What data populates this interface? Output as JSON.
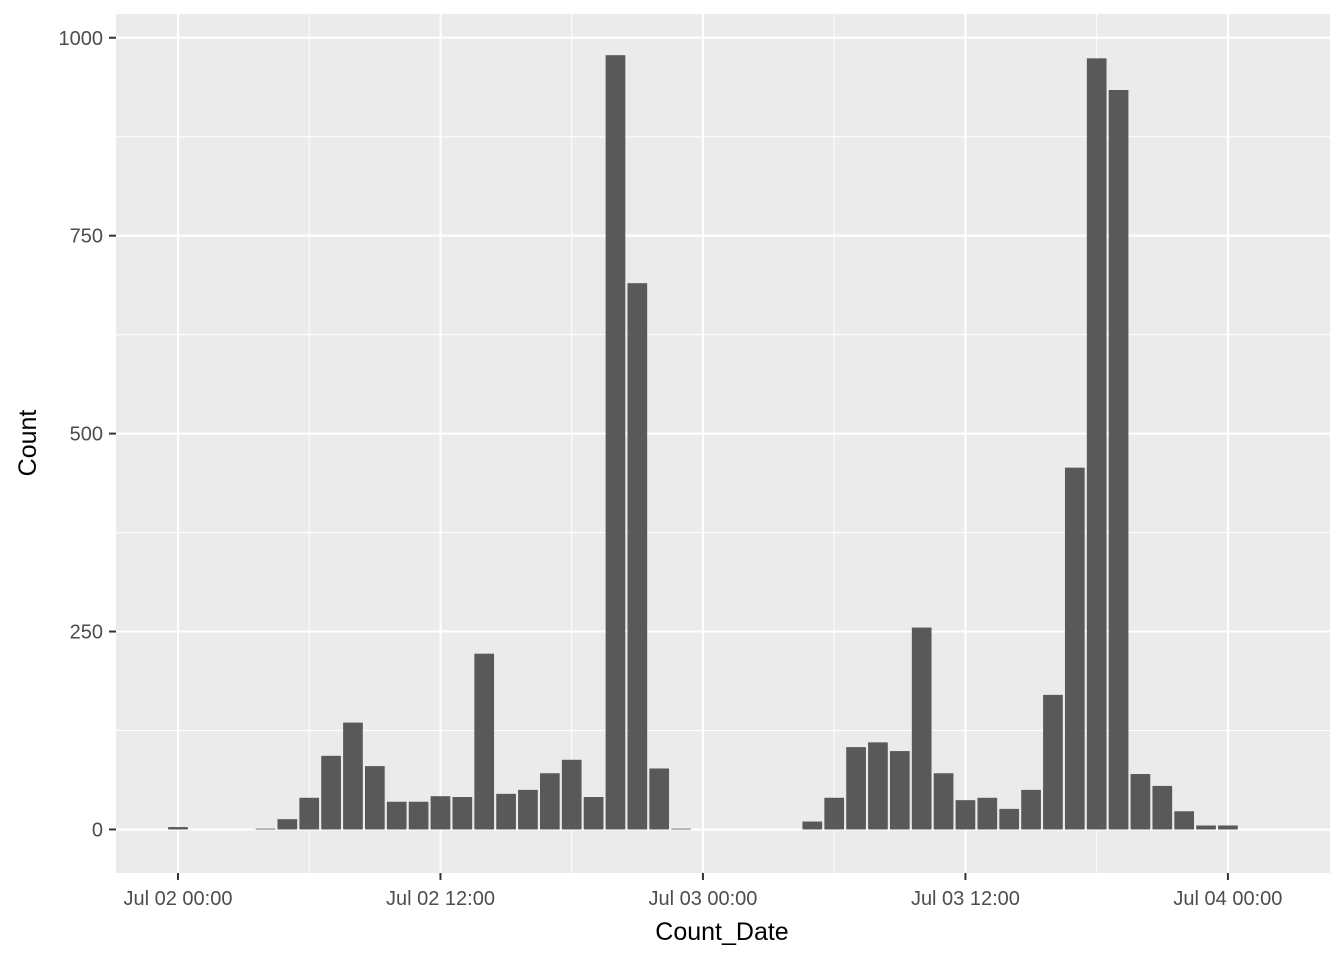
{
  "chart_data": {
    "type": "bar",
    "xlabel": "Count_Date",
    "ylabel": "Count",
    "x_range": [
      "2024-07-01T21:10",
      "2024-07-04T04:40"
    ],
    "ylim": [
      -55,
      1030
    ],
    "x_ticks": [
      {
        "label": "Jul 02 00:00",
        "value": "2024-07-02T00:00"
      },
      {
        "label": "Jul 02 12:00",
        "value": "2024-07-02T12:00"
      },
      {
        "label": "Jul 03 00:00",
        "value": "2024-07-03T00:00"
      },
      {
        "label": "Jul 03 12:00",
        "value": "2024-07-03T12:00"
      },
      {
        "label": "Jul 04 00:00",
        "value": "2024-07-04T00:00"
      }
    ],
    "y_ticks": [
      0,
      250,
      500,
      750,
      1000
    ],
    "grid": true,
    "bar_color": "#595959",
    "panel_color": "#ebebeb",
    "series": [
      {
        "x": [
          "2024-07-02T00:00",
          "2024-07-02T01:00",
          "2024-07-02T02:00",
          "2024-07-02T03:00",
          "2024-07-02T04:00",
          "2024-07-02T05:00",
          "2024-07-02T06:00",
          "2024-07-02T07:00",
          "2024-07-02T08:00",
          "2024-07-02T09:00",
          "2024-07-02T10:00",
          "2024-07-02T11:00",
          "2024-07-02T12:00",
          "2024-07-02T13:00",
          "2024-07-02T14:00",
          "2024-07-02T15:00",
          "2024-07-02T16:00",
          "2024-07-02T17:00",
          "2024-07-02T18:00",
          "2024-07-02T19:00",
          "2024-07-02T20:00",
          "2024-07-02T21:00",
          "2024-07-02T22:00",
          "2024-07-02T23:00",
          "2024-07-03T00:00",
          "2024-07-03T01:00",
          "2024-07-03T02:00",
          "2024-07-03T03:00",
          "2024-07-03T04:00",
          "2024-07-03T05:00",
          "2024-07-03T06:00",
          "2024-07-03T07:00",
          "2024-07-03T08:00",
          "2024-07-03T09:00",
          "2024-07-03T10:00",
          "2024-07-03T11:00",
          "2024-07-03T12:00",
          "2024-07-03T13:00",
          "2024-07-03T14:00",
          "2024-07-03T15:00",
          "2024-07-03T16:00",
          "2024-07-03T17:00",
          "2024-07-03T18:00",
          "2024-07-03T19:00",
          "2024-07-03T20:00",
          "2024-07-03T21:00",
          "2024-07-03T22:00",
          "2024-07-03T23:00",
          "2024-07-04T00:00"
        ],
        "values": [
          3,
          0,
          0,
          0,
          1,
          13,
          40,
          93,
          135,
          80,
          35,
          35,
          42,
          41,
          222,
          45,
          50,
          71,
          88,
          41,
          978,
          690,
          77,
          1,
          0,
          0,
          0,
          0,
          0,
          10,
          40,
          104,
          110,
          99,
          255,
          71,
          37,
          40,
          26,
          50,
          170,
          457,
          974,
          934,
          70,
          55,
          23,
          5,
          5
        ]
      }
    ]
  }
}
